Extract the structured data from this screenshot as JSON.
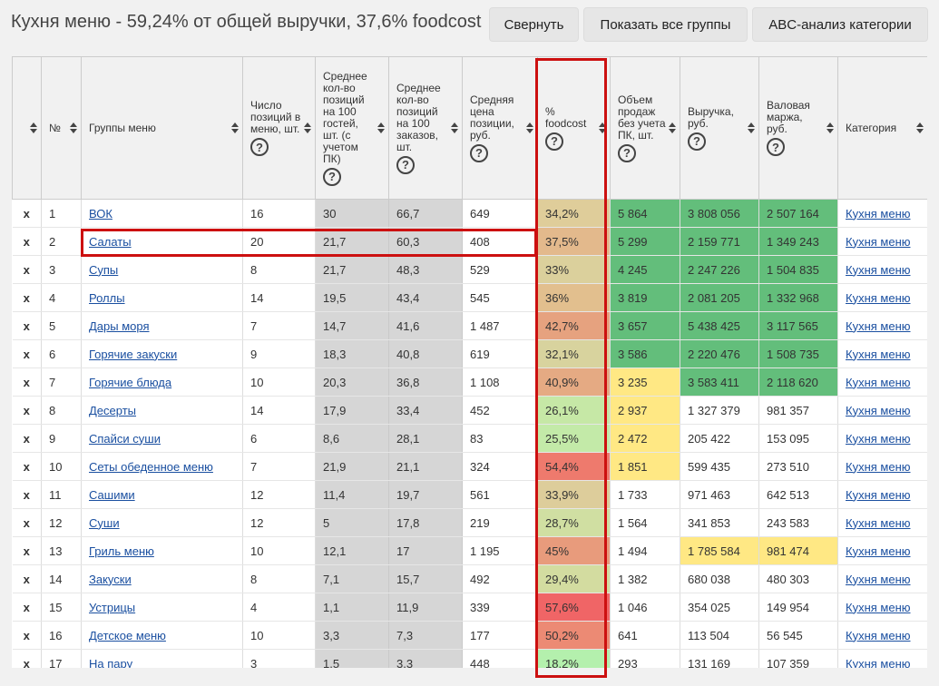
{
  "header": {
    "title": "Кухня меню - 59,24% от общей выручки, 37,6% foodcost",
    "buttons": {
      "collapse": "Свернуть",
      "show_all": "Показать все группы",
      "abc": "ABC-анализ категории"
    }
  },
  "table": {
    "columns": [
      {
        "key": "x",
        "label": "",
        "help": false
      },
      {
        "key": "num",
        "label": "№",
        "help": false
      },
      {
        "key": "group",
        "label": "Группы меню",
        "help": false
      },
      {
        "key": "count",
        "label": "Число позиций в меню, шт.",
        "help": true
      },
      {
        "key": "per100g",
        "label": "Среднее кол-во позиций на 100 гостей, шт. (с учетом ПК)",
        "help": true
      },
      {
        "key": "per100o",
        "label": "Среднее кол-во позиций на 100 заказов, шт.",
        "help": true
      },
      {
        "key": "price",
        "label": "Средняя цена позиции, руб.",
        "help": true
      },
      {
        "key": "foodcost",
        "label": "% foodcost",
        "help": true
      },
      {
        "key": "volume",
        "label": "Объем продаж без учета ПК, шт.",
        "help": true
      },
      {
        "key": "revenue",
        "label": "Выручка, руб.",
        "help": true
      },
      {
        "key": "margin",
        "label": "Валовая маржа, руб.",
        "help": true
      },
      {
        "key": "category",
        "label": "Категория",
        "help": false
      }
    ],
    "help_glyph": "?",
    "rows": [
      {
        "x": "x",
        "num": "1",
        "group": "ВОК",
        "count": "16",
        "per100g": "30",
        "per100o": "66,7",
        "price": "649",
        "foodcost": "34,2%",
        "volume": "5 864",
        "revenue": "3 808 056",
        "margin": "2 507 164",
        "category": "Кухня меню",
        "fc_color": "#dfcd9a",
        "vol_color": "#63be7b",
        "rev_color": "#63be7b",
        "mar_color": "#63be7b"
      },
      {
        "x": "x",
        "num": "2",
        "group": "Салаты",
        "count": "20",
        "per100g": "21,7",
        "per100o": "60,3",
        "price": "408",
        "foodcost": "37,5%",
        "volume": "5 299",
        "revenue": "2 159 771",
        "margin": "1 349 243",
        "category": "Кухня меню",
        "fc_color": "#e3b98c",
        "vol_color": "#63be7b",
        "rev_color": "#63be7b",
        "mar_color": "#63be7b"
      },
      {
        "x": "x",
        "num": "3",
        "group": "Супы",
        "count": "8",
        "per100g": "21,7",
        "per100o": "48,3",
        "price": "529",
        "foodcost": "33%",
        "volume": "4 245",
        "revenue": "2 247 226",
        "margin": "1 504 835",
        "category": "Кухня меню",
        "fc_color": "#dbd09c",
        "vol_color": "#63be7b",
        "rev_color": "#63be7b",
        "mar_color": "#63be7b"
      },
      {
        "x": "x",
        "num": "4",
        "group": "Роллы",
        "count": "14",
        "per100g": "19,5",
        "per100o": "43,4",
        "price": "545",
        "foodcost": "36%",
        "volume": "3 819",
        "revenue": "2 081 205",
        "margin": "1 332 968",
        "category": "Кухня меню",
        "fc_color": "#e2bf8e",
        "vol_color": "#63be7b",
        "rev_color": "#63be7b",
        "mar_color": "#63be7b"
      },
      {
        "x": "x",
        "num": "5",
        "group": "Дары моря",
        "count": "7",
        "per100g": "14,7",
        "per100o": "41,6",
        "price": "1 487",
        "foodcost": "42,7%",
        "volume": "3 657",
        "revenue": "5 438 425",
        "margin": "3 117 565",
        "category": "Кухня меню",
        "fc_color": "#e6a27f",
        "vol_color": "#63be7b",
        "rev_color": "#63be7b",
        "mar_color": "#63be7b"
      },
      {
        "x": "x",
        "num": "6",
        "group": "Горячие закуски",
        "count": "9",
        "per100g": "18,3",
        "per100o": "40,8",
        "price": "619",
        "foodcost": "32,1%",
        "volume": "3 586",
        "revenue": "2 220 476",
        "margin": "1 508 735",
        "category": "Кухня меню",
        "fc_color": "#d8d39e",
        "vol_color": "#63be7b",
        "rev_color": "#63be7b",
        "mar_color": "#63be7b"
      },
      {
        "x": "x",
        "num": "7",
        "group": "Горячие блюда",
        "count": "10",
        "per100g": "20,3",
        "per100o": "36,8",
        "price": "1 108",
        "foodcost": "40,9%",
        "volume": "3 235",
        "revenue": "3 583 411",
        "margin": "2 118 620",
        "category": "Кухня меню",
        "fc_color": "#e5aa83",
        "vol_color": "#ffe884",
        "rev_color": "#63be7b",
        "mar_color": "#63be7b"
      },
      {
        "x": "x",
        "num": "8",
        "group": "Десерты",
        "count": "14",
        "per100g": "17,9",
        "per100o": "33,4",
        "price": "452",
        "foodcost": "26,1%",
        "volume": "2 937",
        "revenue": "1 327 379",
        "margin": "981 357",
        "category": "Кухня меню",
        "fc_color": "#c6e8a6",
        "vol_color": "#ffe884",
        "rev_color": "#ffffff",
        "mar_color": "#ffffff"
      },
      {
        "x": "x",
        "num": "9",
        "group": "Спайси суши",
        "count": "6",
        "per100g": "8,6",
        "per100o": "28,1",
        "price": "83",
        "foodcost": "25,5%",
        "volume": "2 472",
        "revenue": "205 422",
        "margin": "153 095",
        "category": "Кухня меню",
        "fc_color": "#c3eaa8",
        "vol_color": "#ffe884",
        "rev_color": "#ffffff",
        "mar_color": "#ffffff"
      },
      {
        "x": "x",
        "num": "10",
        "group": "Сеты обеденное меню",
        "count": "7",
        "per100g": "21,9",
        "per100o": "21,1",
        "price": "324",
        "foodcost": "54,4%",
        "volume": "1 851",
        "revenue": "599 435",
        "margin": "273 510",
        "category": "Кухня меню",
        "fc_color": "#ee7a6d",
        "vol_color": "#ffe884",
        "rev_color": "#ffffff",
        "mar_color": "#ffffff"
      },
      {
        "x": "x",
        "num": "11",
        "group": "Сашими",
        "count": "12",
        "per100g": "11,4",
        "per100o": "19,7",
        "price": "561",
        "foodcost": "33,9%",
        "volume": "1 733",
        "revenue": "971 463",
        "margin": "642 513",
        "category": "Кухня меню",
        "fc_color": "#ddcd9b",
        "vol_color": "#ffffff",
        "rev_color": "#ffffff",
        "mar_color": "#ffffff"
      },
      {
        "x": "x",
        "num": "12",
        "group": "Суши",
        "count": "12",
        "per100g": "5",
        "per100o": "17,8",
        "price": "219",
        "foodcost": "28,7%",
        "volume": "1 564",
        "revenue": "341 853",
        "margin": "243 583",
        "category": "Кухня меню",
        "fc_color": "#d0dfa2",
        "vol_color": "#ffffff",
        "rev_color": "#ffffff",
        "mar_color": "#ffffff"
      },
      {
        "x": "x",
        "num": "13",
        "group": "Гриль меню",
        "count": "10",
        "per100g": "12,1",
        "per100o": "17",
        "price": "1 195",
        "foodcost": "45%",
        "volume": "1 494",
        "revenue": "1 785 584",
        "margin": "981 474",
        "category": "Кухня меню",
        "fc_color": "#e89b7c",
        "vol_color": "#ffffff",
        "rev_color": "#ffe884",
        "mar_color": "#ffe884"
      },
      {
        "x": "x",
        "num": "14",
        "group": "Закуски",
        "count": "8",
        "per100g": "7,1",
        "per100o": "15,7",
        "price": "492",
        "foodcost": "29,4%",
        "volume": "1 382",
        "revenue": "680 038",
        "margin": "480 303",
        "category": "Кухня меню",
        "fc_color": "#d3dca0",
        "vol_color": "#ffffff",
        "rev_color": "#ffffff",
        "mar_color": "#ffffff"
      },
      {
        "x": "x",
        "num": "15",
        "group": "Устрицы",
        "count": "4",
        "per100g": "1,1",
        "per100o": "11,9",
        "price": "339",
        "foodcost": "57,6%",
        "volume": "1 046",
        "revenue": "354 025",
        "margin": "149 954",
        "category": "Кухня меню",
        "fc_color": "#f06566",
        "vol_color": "#ffffff",
        "rev_color": "#ffffff",
        "mar_color": "#ffffff"
      },
      {
        "x": "x",
        "num": "16",
        "group": "Детское меню",
        "count": "10",
        "per100g": "3,3",
        "per100o": "7,3",
        "price": "177",
        "foodcost": "50,2%",
        "volume": "641",
        "revenue": "113 504",
        "margin": "56 545",
        "category": "Кухня меню",
        "fc_color": "#ec8a74",
        "vol_color": "#ffffff",
        "rev_color": "#ffffff",
        "mar_color": "#ffffff"
      },
      {
        "x": "x",
        "num": "17",
        "group": "На пару",
        "count": "3",
        "per100g": "1,5",
        "per100o": "3,3",
        "price": "448",
        "foodcost": "18,2%",
        "volume": "293",
        "revenue": "131 169",
        "margin": "107 359",
        "category": "Кухня меню",
        "fc_color": "#b4f0ad",
        "vol_color": "#ffffff",
        "rev_color": "#ffffff",
        "mar_color": "#ffffff"
      }
    ]
  }
}
